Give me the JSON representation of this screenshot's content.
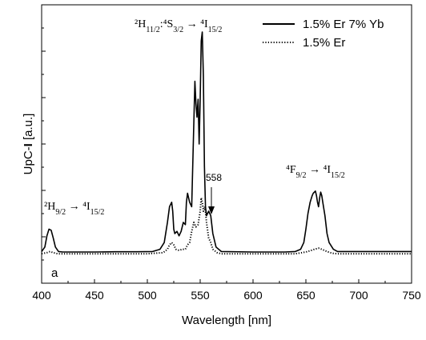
{
  "chart_data": {
    "type": "line",
    "panel_label": "a",
    "xlabel": "Wavelength [nm]",
    "ylabel_prefix": "UpC-",
    "ylabel_bold": "I",
    "ylabel_suffix": " [a.u.]",
    "xlim": [
      400,
      750
    ],
    "ylim": [
      0,
      1.1
    ],
    "x_ticks": [
      400,
      450,
      500,
      550,
      600,
      650,
      700,
      750
    ],
    "y_ticks_labeled": false,
    "legend_position": "top-right",
    "series": [
      {
        "name": "1.5% Er 7% Yb",
        "style": "solid",
        "color": "#000000",
        "points": [
          [
            400,
            0.02
          ],
          [
            403,
            0.04
          ],
          [
            405,
            0.09
          ],
          [
            407,
            0.12
          ],
          [
            409,
            0.115
          ],
          [
            411,
            0.08
          ],
          [
            413,
            0.04
          ],
          [
            416,
            0.02
          ],
          [
            420,
            0.018
          ],
          [
            450,
            0.018
          ],
          [
            470,
            0.019
          ],
          [
            490,
            0.019
          ],
          [
            505,
            0.02
          ],
          [
            512,
            0.03
          ],
          [
            516,
            0.06
          ],
          [
            519,
            0.15
          ],
          [
            521,
            0.22
          ],
          [
            523,
            0.24
          ],
          [
            524,
            0.2
          ],
          [
            525,
            0.12
          ],
          [
            526,
            0.1
          ],
          [
            528,
            0.11
          ],
          [
            530,
            0.09
          ],
          [
            532,
            0.11
          ],
          [
            534,
            0.15
          ],
          [
            536,
            0.14
          ],
          [
            537,
            0.24
          ],
          [
            538,
            0.28
          ],
          [
            540,
            0.24
          ],
          [
            542,
            0.22
          ],
          [
            544,
            0.6
          ],
          [
            545,
            0.78
          ],
          [
            546,
            0.68
          ],
          [
            547,
            0.62
          ],
          [
            548,
            0.7
          ],
          [
            549,
            0.5
          ],
          [
            550,
            0.7
          ],
          [
            551,
            0.96
          ],
          [
            552,
            1.0
          ],
          [
            553,
            0.8
          ],
          [
            554,
            0.4
          ],
          [
            555,
            0.22
          ],
          [
            556,
            0.18
          ],
          [
            558,
            0.2
          ],
          [
            560,
            0.18
          ],
          [
            562,
            0.1
          ],
          [
            565,
            0.04
          ],
          [
            570,
            0.02
          ],
          [
            600,
            0.018
          ],
          [
            630,
            0.018
          ],
          [
            640,
            0.02
          ],
          [
            645,
            0.03
          ],
          [
            648,
            0.06
          ],
          [
            650,
            0.12
          ],
          [
            652,
            0.19
          ],
          [
            654,
            0.24
          ],
          [
            656,
            0.27
          ],
          [
            657,
            0.28
          ],
          [
            659,
            0.29
          ],
          [
            660,
            0.27
          ],
          [
            661,
            0.24
          ],
          [
            662,
            0.22
          ],
          [
            663,
            0.26
          ],
          [
            664,
            0.285
          ],
          [
            665,
            0.27
          ],
          [
            666,
            0.24
          ],
          [
            668,
            0.18
          ],
          [
            670,
            0.1
          ],
          [
            672,
            0.06
          ],
          [
            676,
            0.03
          ],
          [
            680,
            0.02
          ],
          [
            700,
            0.02
          ],
          [
            750,
            0.02
          ]
        ]
      },
      {
        "name": "1.5% Er",
        "style": "dotted",
        "color": "#000000",
        "points": [
          [
            400,
            0.01
          ],
          [
            405,
            0.015
          ],
          [
            408,
            0.02
          ],
          [
            411,
            0.015
          ],
          [
            415,
            0.01
          ],
          [
            500,
            0.01
          ],
          [
            515,
            0.015
          ],
          [
            519,
            0.03
          ],
          [
            521,
            0.05
          ],
          [
            523,
            0.06
          ],
          [
            525,
            0.05
          ],
          [
            527,
            0.03
          ],
          [
            530,
            0.025
          ],
          [
            533,
            0.03
          ],
          [
            536,
            0.03
          ],
          [
            538,
            0.05
          ],
          [
            540,
            0.06
          ],
          [
            542,
            0.11
          ],
          [
            544,
            0.15
          ],
          [
            546,
            0.13
          ],
          [
            548,
            0.14
          ],
          [
            550,
            0.2
          ],
          [
            551,
            0.26
          ],
          [
            552,
            0.24
          ],
          [
            553,
            0.2
          ],
          [
            554,
            0.22
          ],
          [
            555,
            0.2
          ],
          [
            556,
            0.15
          ],
          [
            558,
            0.08
          ],
          [
            560,
            0.06
          ],
          [
            562,
            0.03
          ],
          [
            566,
            0.015
          ],
          [
            570,
            0.01
          ],
          [
            640,
            0.01
          ],
          [
            650,
            0.018
          ],
          [
            655,
            0.025
          ],
          [
            658,
            0.03
          ],
          [
            662,
            0.035
          ],
          [
            665,
            0.03
          ],
          [
            670,
            0.02
          ],
          [
            675,
            0.012
          ],
          [
            680,
            0.01
          ],
          [
            750,
            0.01
          ]
        ]
      }
    ],
    "annotations": [
      {
        "id": "green",
        "text_html": "<tspan>²H</tspan><tspan baseline-shift='sub' font-size='10'>11/2</tspan><tspan>:⁴S</tspan><tspan baseline-shift='sub' font-size='10'>3/2</tspan><tspan> → ⁴I</tspan><tspan baseline-shift='sub' font-size='10'>15/2</tspan>"
      },
      {
        "id": "red",
        "text_html": "<tspan>⁴F</tspan><tspan baseline-shift='sub' font-size='10'>9/2</tspan><tspan> → ⁴I</tspan><tspan baseline-shift='sub' font-size='10'>15/2</tspan>"
      },
      {
        "id": "blue",
        "text_html": "<tspan>²H</tspan><tspan baseline-shift='sub' font-size='10'>9/2</tspan><tspan> → ⁴I</tspan><tspan baseline-shift='sub' font-size='10'>15/2</tspan>"
      },
      {
        "id": "558",
        "text": "558",
        "x": 558
      }
    ]
  }
}
